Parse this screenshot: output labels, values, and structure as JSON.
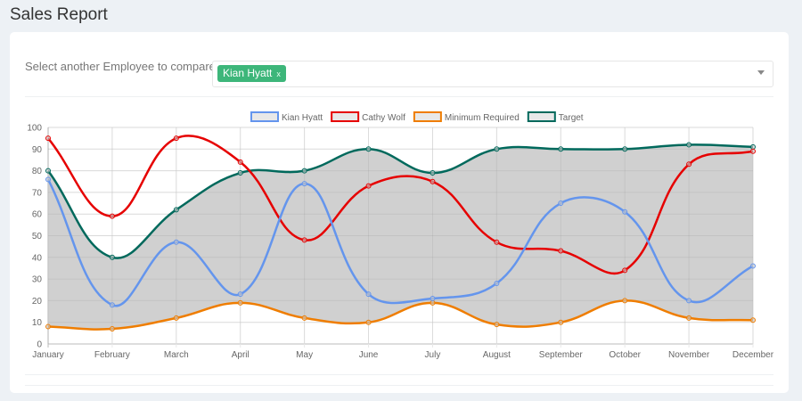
{
  "header": {
    "title": "Sales Report"
  },
  "compare": {
    "label": "Select another Employee to compare",
    "selected": [
      "Kian Hyatt"
    ],
    "remove_glyph": "x",
    "dropdown_icon": "caret-down-icon"
  },
  "chart_data": {
    "type": "line",
    "categories": [
      "January",
      "February",
      "March",
      "April",
      "May",
      "June",
      "July",
      "August",
      "September",
      "October",
      "November",
      "December"
    ],
    "ylim": [
      0,
      100
    ],
    "yticks": [
      0,
      10,
      20,
      30,
      40,
      50,
      60,
      70,
      80,
      90,
      100
    ],
    "grid": true,
    "legend": "top",
    "series": [
      {
        "name": "Kian Hyatt",
        "color": "#6495ed",
        "values": [
          76,
          18,
          47,
          23,
          74,
          23,
          21,
          28,
          65,
          61,
          20,
          36
        ]
      },
      {
        "name": "Cathy Wolf",
        "color": "#e60000",
        "values": [
          95,
          59,
          95,
          84,
          48,
          73,
          75,
          47,
          43,
          34,
          83,
          89
        ]
      },
      {
        "name": "Minimum Required",
        "color": "#ef7d00",
        "values": [
          8,
          7,
          12,
          19,
          12,
          10,
          19,
          9,
          10,
          20,
          12,
          11
        ]
      },
      {
        "name": "Target",
        "color": "#00695c",
        "fill": "#d0d0d0",
        "values": [
          80,
          40,
          62,
          79,
          80,
          90,
          79,
          90,
          90,
          90,
          92,
          91
        ]
      }
    ]
  }
}
